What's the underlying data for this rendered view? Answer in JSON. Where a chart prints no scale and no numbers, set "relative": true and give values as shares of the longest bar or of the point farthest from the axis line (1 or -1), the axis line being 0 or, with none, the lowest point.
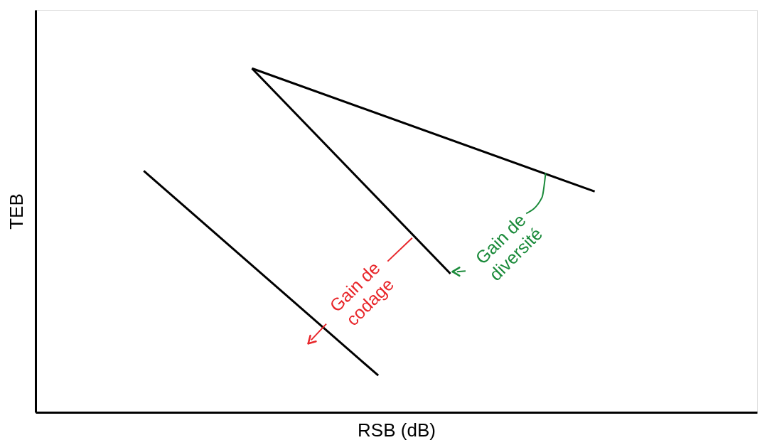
{
  "chart_data": {
    "type": "line",
    "relative": true,
    "xlabel": "RSB (dB)",
    "ylabel": "TEB",
    "grid": false,
    "legend": false,
    "tick_labels": false,
    "marker": "none",
    "line_style": "solid",
    "categories": [
      null,
      null,
      null,
      null,
      null,
      null,
      null,
      null,
      null,
      null,
      null,
      null,
      null,
      null,
      null,
      null,
      null,
      null,
      null,
      null,
      null,
      null,
      null,
      null,
      null,
      null,
      null,
      null,
      null,
      null,
      null,
      null,
      null,
      null,
      null,
      null,
      null,
      null,
      null,
      null,
      null
    ],
    "series": [
      {
        "color": "#000000",
        "values": [
          null,
          null,
          null,
          null,
          null,
          null,
          0.702,
          null,
          null,
          null,
          null,
          null,
          null,
          null,
          null,
          null,
          null,
          null,
          null,
          0.107,
          null,
          null,
          null,
          null,
          null,
          null,
          null,
          null,
          null,
          null,
          null,
          null,
          null,
          null,
          null,
          null,
          null,
          null,
          null,
          null,
          null
        ]
      },
      {
        "color": "#000000",
        "values": [
          null,
          null,
          null,
          null,
          null,
          null,
          null,
          null,
          null,
          null,
          null,
          null,
          1,
          null,
          null,
          null,
          null,
          null,
          null,
          null,
          null,
          null,
          null,
          0.403,
          null,
          null,
          null,
          null,
          null,
          null,
          null,
          null,
          null,
          null,
          null,
          null,
          null,
          null,
          null,
          null,
          null
        ]
      },
      {
        "color": "#000000",
        "values": [
          null,
          null,
          null,
          null,
          null,
          null,
          null,
          null,
          null,
          null,
          null,
          null,
          1,
          null,
          null,
          null,
          null,
          null,
          null,
          null,
          null,
          null,
          null,
          null,
          null,
          null,
          null,
          null,
          null,
          null,
          null,
          0.642,
          null,
          null,
          null,
          null,
          null,
          null,
          null,
          null,
          null
        ]
      }
    ],
    "annotations": [
      "Gain de\ncodage",
      "Gain de\ndiversité"
    ]
  }
}
